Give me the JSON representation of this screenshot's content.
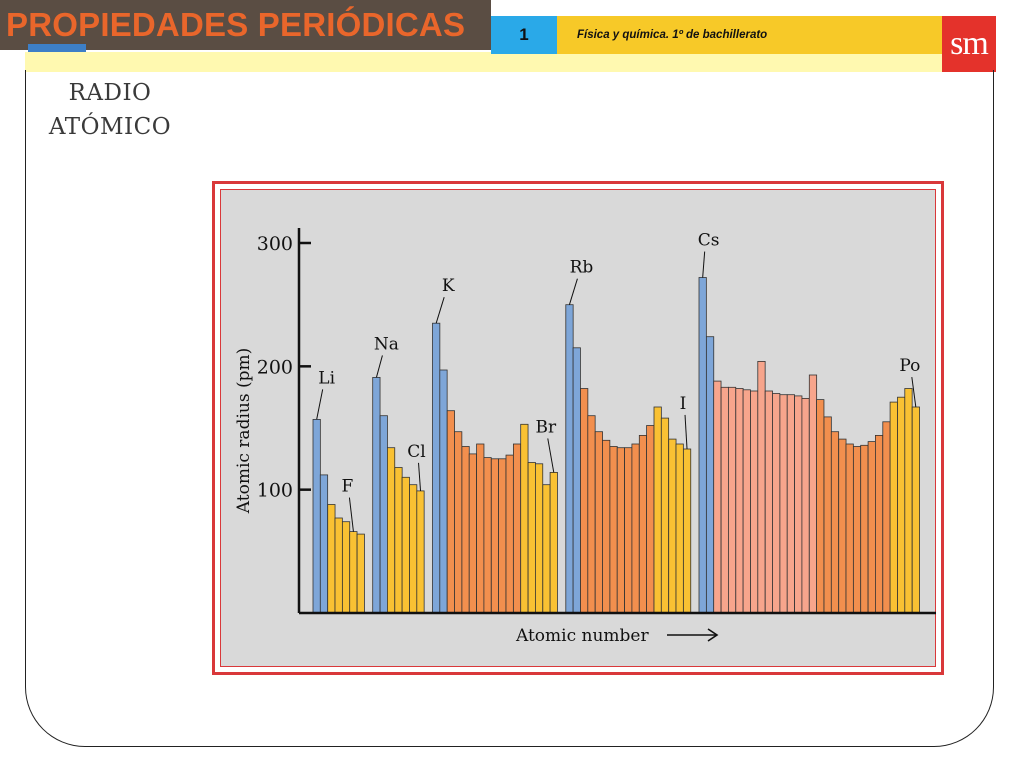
{
  "header": {
    "title": "PROPIEDADES PERIÓDICAS",
    "unit_number": "1",
    "course": "Física y química. 1º de bachillerato",
    "logo": "sm"
  },
  "section_title_lines": [
    "RADIO",
    "ATÓMICO"
  ],
  "colors": {
    "alkali_blue": "#7ea6d8",
    "orange": "#f28f4e",
    "yellow": "#f9c133",
    "salmon": "#f7a58c",
    "title_orange": "#e9662b",
    "frame_red": "#d9383a"
  },
  "chart_data": {
    "type": "bar",
    "xlabel": "Atomic number",
    "ylabel": "Atomic radius (pm)",
    "ylim": [
      0,
      300
    ],
    "yticks": [
      100,
      200,
      300
    ],
    "grid": false,
    "groups": [
      {
        "values": [
          157,
          112,
          88,
          77,
          74,
          66,
          64
        ],
        "colors": [
          "blue",
          "blue",
          "yellow",
          "yellow",
          "yellow",
          "yellow",
          "yellow"
        ]
      },
      {
        "values": [
          191,
          160,
          134,
          118,
          110,
          104,
          99
        ],
        "colors": [
          "blue",
          "blue",
          "yellow",
          "yellow",
          "yellow",
          "yellow",
          "yellow"
        ]
      },
      {
        "values": [
          235,
          197,
          164,
          147,
          135,
          129,
          137,
          126,
          125,
          125,
          128,
          137,
          153,
          122,
          121,
          104,
          114
        ],
        "colors": [
          "blue",
          "blue",
          "orange",
          "orange",
          "orange",
          "orange",
          "orange",
          "orange",
          "orange",
          "orange",
          "orange",
          "orange",
          "yellow",
          "yellow",
          "yellow",
          "yellow",
          "yellow"
        ]
      },
      {
        "values": [
          250,
          215,
          182,
          160,
          147,
          140,
          135,
          134,
          134,
          137,
          144,
          152,
          167,
          158,
          141,
          137,
          133
        ],
        "colors": [
          "blue",
          "blue",
          "orange",
          "orange",
          "orange",
          "orange",
          "orange",
          "orange",
          "orange",
          "orange",
          "orange",
          "orange",
          "yellow",
          "yellow",
          "yellow",
          "yellow",
          "yellow"
        ]
      },
      {
        "values": [
          272,
          224,
          188,
          183,
          183,
          182,
          181,
          180,
          204,
          180,
          178,
          177,
          177,
          176,
          174,
          193,
          173,
          159,
          147,
          141,
          137,
          135,
          136,
          139,
          144,
          155,
          171,
          175,
          182,
          167
        ],
        "colors": [
          "blue",
          "blue",
          "salmon",
          "salmon",
          "salmon",
          "salmon",
          "salmon",
          "salmon",
          "salmon",
          "salmon",
          "salmon",
          "salmon",
          "salmon",
          "salmon",
          "salmon",
          "salmon",
          "orange",
          "orange",
          "orange",
          "orange",
          "orange",
          "orange",
          "orange",
          "orange",
          "orange",
          "orange",
          "yellow",
          "yellow",
          "yellow",
          "yellow"
        ]
      }
    ],
    "annotations": [
      {
        "text": "Li",
        "group": 0,
        "index": 0
      },
      {
        "text": "F",
        "group": 0,
        "index": 5
      },
      {
        "text": "Na",
        "group": 1,
        "index": 0
      },
      {
        "text": "Cl",
        "group": 1,
        "index": 6
      },
      {
        "text": "K",
        "group": 2,
        "index": 0
      },
      {
        "text": "Br",
        "group": 2,
        "index": 16
      },
      {
        "text": "Rb",
        "group": 3,
        "index": 0
      },
      {
        "text": "I",
        "group": 3,
        "index": 16
      },
      {
        "text": "Cs",
        "group": 4,
        "index": 0
      },
      {
        "text": "Po",
        "group": 4,
        "index": 29
      }
    ]
  }
}
